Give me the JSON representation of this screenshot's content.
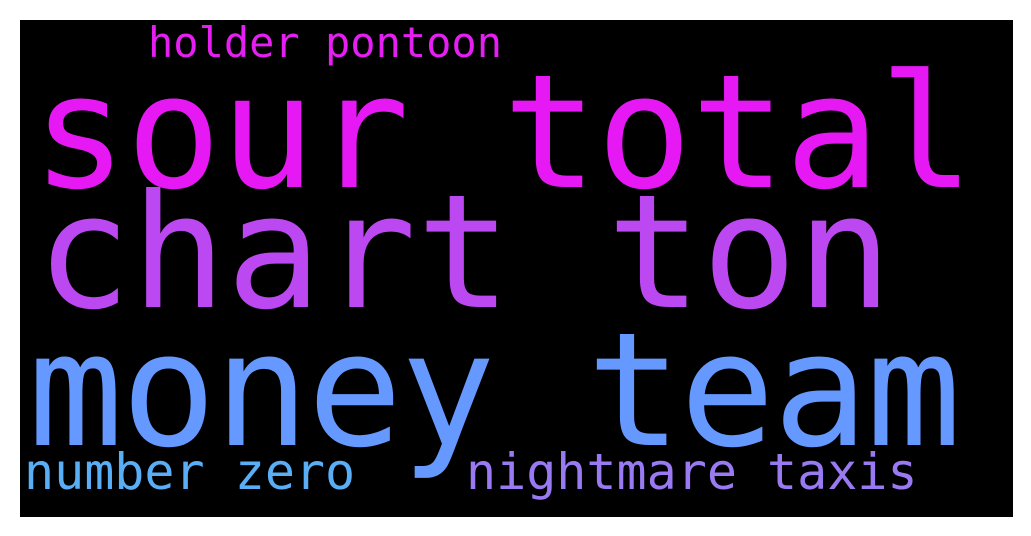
{
  "background_color": "#000000",
  "words": {
    "holder_pontoon": {
      "text": "holder pontoon",
      "color": "#e51ef1"
    },
    "sour_total": {
      "text": "sour total",
      "color": "#e619f4"
    },
    "chart_ton": {
      "text": "chart ton",
      "color": "#bb48f0"
    },
    "money_team": {
      "text": "money team",
      "color": "#6699ff"
    },
    "number_zero": {
      "text": "number zero",
      "color": "#5aaef5"
    },
    "nightmare_taxis": {
      "text": "nightmare taxis",
      "color": "#9a7af2"
    }
  }
}
